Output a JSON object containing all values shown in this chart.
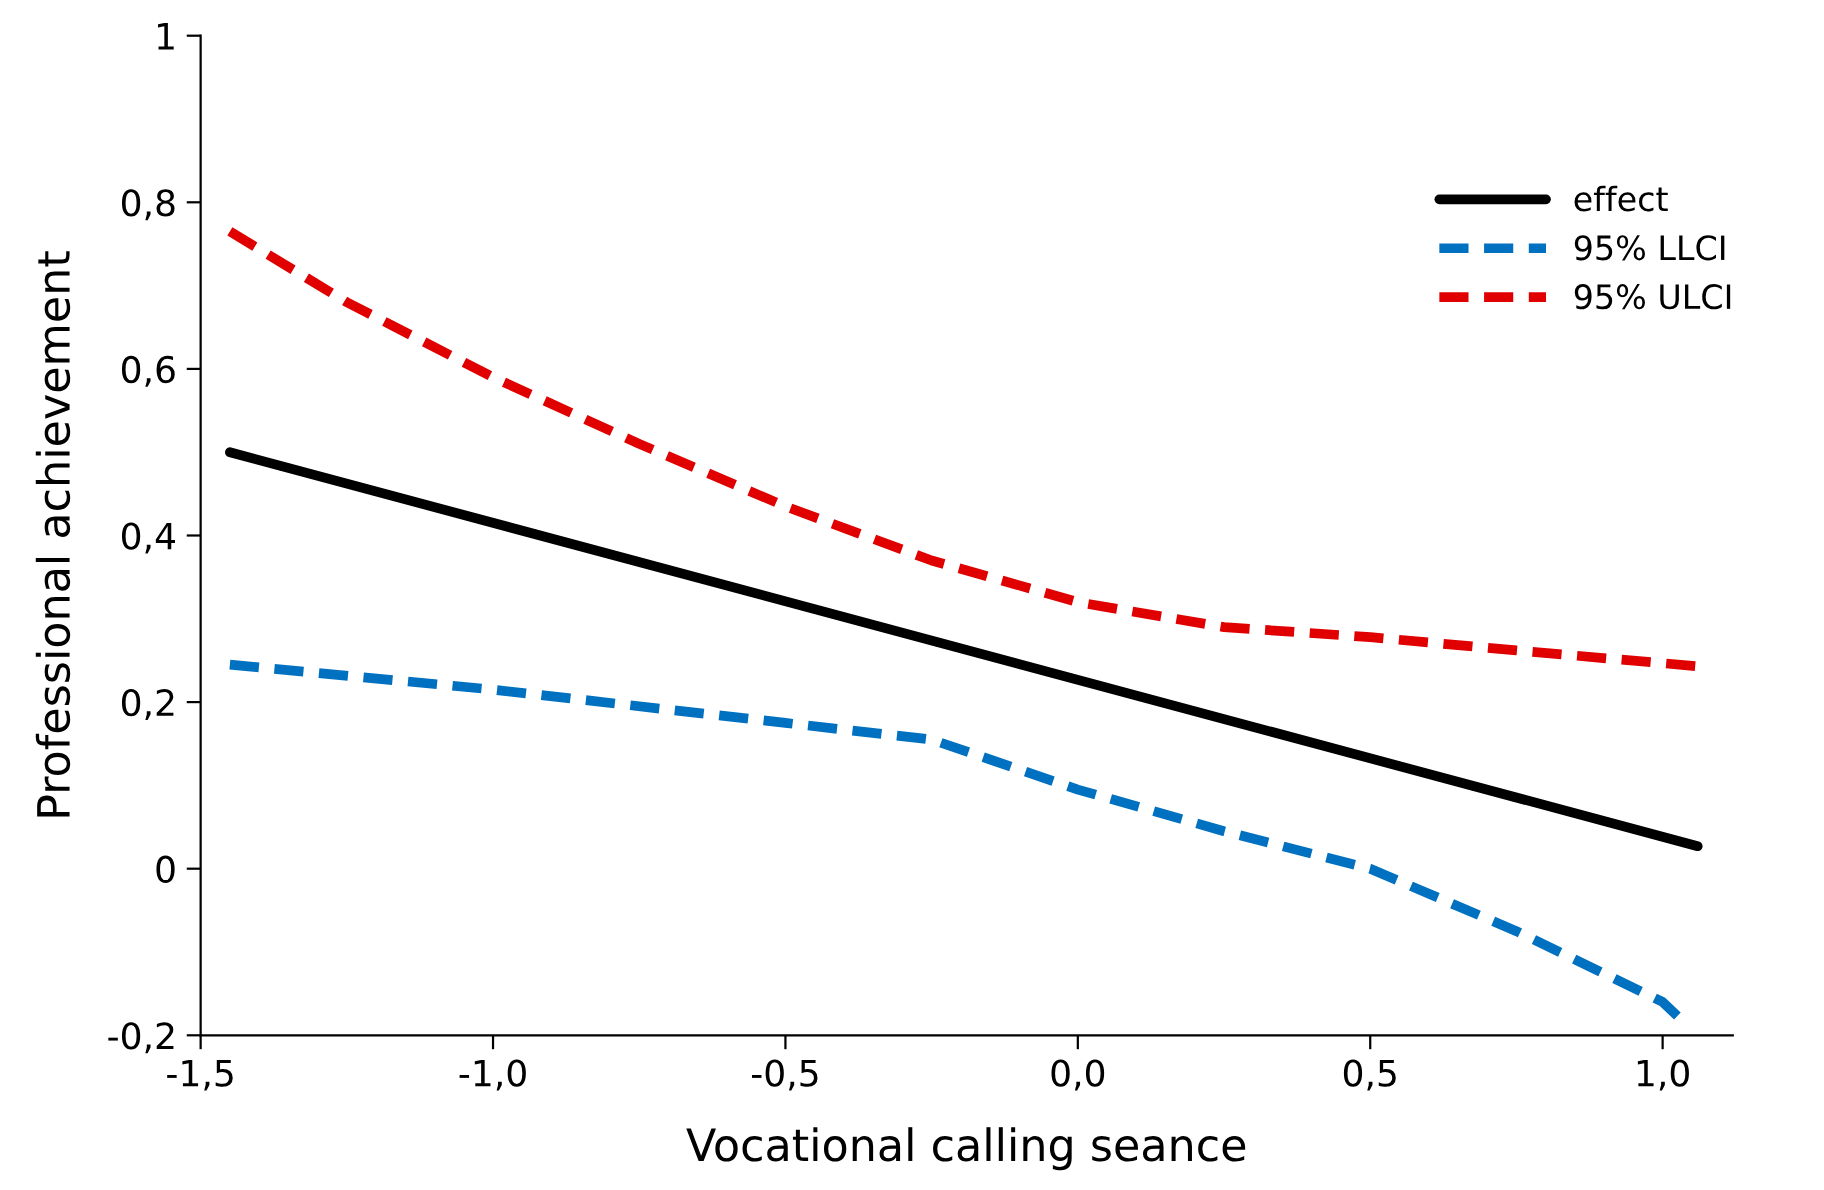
{
  "chart_data": {
    "type": "line",
    "xlabel": "Vocational calling seance",
    "ylabel": "Professional achievement",
    "xlim": [
      -1.5,
      1.12
    ],
    "ylim": [
      -0.2,
      1
    ],
    "xticks": [
      {
        "value": -1.5,
        "label": "-1,5"
      },
      {
        "value": -1.0,
        "label": "-1,0"
      },
      {
        "value": -0.5,
        "label": "-0,5"
      },
      {
        "value": 0.0,
        "label": "0,0"
      },
      {
        "value": 0.5,
        "label": "0,5"
      },
      {
        "value": 1.0,
        "label": "1,0"
      }
    ],
    "yticks": [
      {
        "value": -0.2,
        "label": "-0,2"
      },
      0,
      {
        "value": 0.2,
        "label": "0,2"
      },
      {
        "value": 0.4,
        "label": "0,4"
      },
      {
        "value": 0.6,
        "label": "0,6"
      },
      {
        "value": 0.8,
        "label": "0,8"
      },
      1
    ],
    "grid": false,
    "legend": "top right",
    "marker": "none",
    "series": [
      {
        "name": "effect",
        "color": "#000000",
        "line_style": "solid",
        "x": [
          -1.45,
          1.06
        ],
        "values": [
          0.5,
          0.027
        ]
      },
      {
        "name": "95% LLCI",
        "color": "#0070c0",
        "line_style": "dashed",
        "x": [
          -1.45,
          -1.0,
          -0.5,
          -0.25,
          0.0,
          0.25,
          0.5,
          0.75,
          1.0,
          1.03
        ],
        "values": [
          0.245,
          0.215,
          0.175,
          0.155,
          0.095,
          0.045,
          0.0,
          -0.075,
          -0.16,
          -0.18
        ]
      },
      {
        "name": "95% ULCI",
        "color": "#e00000",
        "line_style": "dashed",
        "x": [
          -1.45,
          -1.25,
          -1.0,
          -0.75,
          -0.5,
          -0.25,
          0.0,
          0.25,
          0.5,
          0.75,
          1.06
        ],
        "values": [
          0.765,
          0.68,
          0.59,
          0.51,
          0.435,
          0.37,
          0.32,
          0.29,
          0.278,
          0.262,
          0.243
        ]
      }
    ]
  }
}
